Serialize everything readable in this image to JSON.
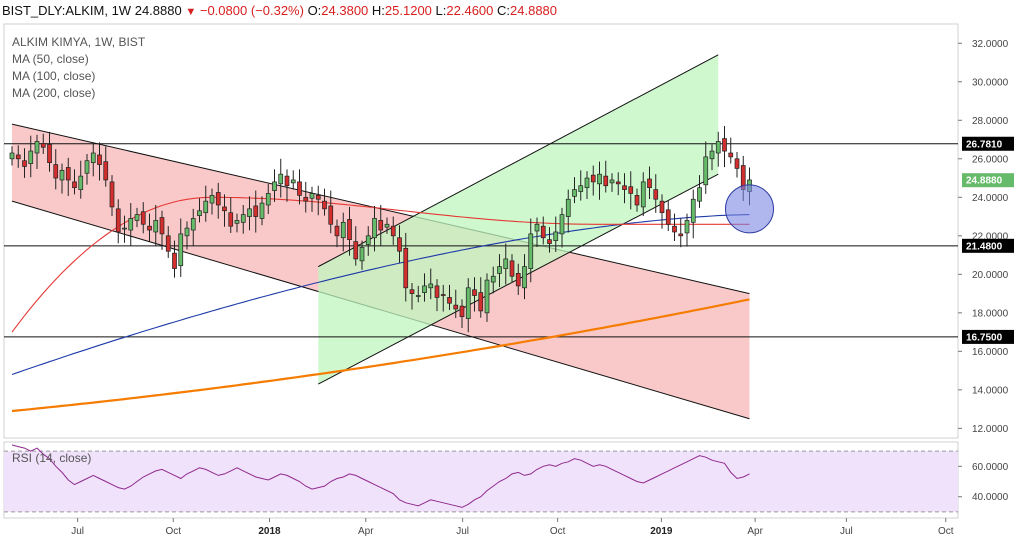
{
  "header": {
    "symbol": "BIST_DLY:ALKIM, 1W",
    "last": "24.8880",
    "change": "−0.0800 (−0.32%)",
    "o_label": "O:",
    "o": "24.3800",
    "h_label": "H:",
    "h": "25.1200",
    "l_label": "L:",
    "l": "22.4600",
    "c_label": "C:",
    "c": "24.8880"
  },
  "legend": {
    "title": "ALKIM KIMYA, 1W, BIST",
    "ma50": "MA (50, close)",
    "ma100": "MA (100, close)",
    "ma200": "MA (200, close)"
  },
  "rsi_label": "RSI (14, close)",
  "colors": {
    "up": "#26a69a",
    "down": "#ef5350",
    "candle_up_fill": "#66bb6a",
    "candle_down_fill": "#d32f2f",
    "ma50": "#e53935",
    "ma100": "#1e3aa8",
    "ma200": "#f57c00",
    "down_channel": "#f8bfbf",
    "up_channel": "#bff5bf",
    "rsi_bg": "#f1e2fb",
    "rsi_line": "#8e2a8e",
    "highlight_circle": "#7b86e3"
  },
  "chart_data": [
    {
      "type": "candlestick",
      "title": "ALKIM KIMYA, 1W, BIST",
      "interval": "1W",
      "x_tick_labels": [
        "Jul",
        "Oct",
        "2018",
        "Apr",
        "Jul",
        "Oct",
        "2019",
        "Apr",
        "Jul",
        "Oct"
      ],
      "y_tick_labels": [
        "12.0000",
        "14.0000",
        "16.0000",
        "18.0000",
        "20.0000",
        "22.0000",
        "24.0000",
        "26.0000",
        "28.0000",
        "30.0000",
        "32.0000"
      ],
      "ylim": [
        11.5,
        33.0
      ],
      "price_labels": [
        "26.7810",
        "24.8880",
        "21.4800",
        "16.7500"
      ],
      "horizontal_levels": [
        26.781,
        21.48,
        16.75
      ],
      "closes": [
        26.3,
        26.0,
        25.6,
        26.4,
        26.9,
        26.6,
        25.8,
        25.0,
        25.4,
        24.9,
        24.5,
        25.1,
        25.9,
        26.3,
        25.7,
        24.9,
        23.5,
        22.2,
        22.4,
        22.9,
        23.1,
        22.6,
        22.3,
        22.8,
        22.1,
        21.2,
        20.3,
        22.1,
        22.4,
        22.9,
        23.3,
        23.8,
        24.1,
        23.6,
        23.3,
        22.5,
        22.8,
        23.1,
        23.4,
        23.0,
        23.7,
        24.2,
        24.8,
        25.2,
        24.6,
        24.9,
        24.1,
        23.8,
        24.2,
        23.9,
        23.4,
        22.6,
        22.0,
        22.7,
        21.8,
        20.8,
        21.4,
        22.0,
        22.9,
        22.3,
        22.6,
        22.0,
        21.2,
        19.3,
        19.0,
        18.9,
        19.4,
        19.5,
        18.8,
        18.9,
        18.5,
        18.2,
        17.8,
        19.3,
        18.9,
        18.1,
        19.7,
        19.9,
        20.4,
        20.8,
        19.9,
        19.4,
        20.4,
        22.1,
        22.6,
        21.9,
        21.6,
        22.2,
        23.1,
        23.9,
        24.4,
        24.6,
        25.0,
        24.8,
        25.2,
        24.6,
        24.9,
        24.7,
        24.4,
        24.2,
        23.6,
        24.8,
        24.5,
        23.9,
        23.2,
        22.6,
        22.2,
        22.0,
        22.8,
        23.9,
        24.5,
        26.1,
        26.4,
        26.9,
        26.4,
        26.1,
        25.5,
        24.4,
        24.9
      ],
      "last_close": 24.888,
      "moving_averages": [
        {
          "name": "MA (50, close)",
          "start": 17.0,
          "peak": 24.0,
          "end": 22.6
        },
        {
          "name": "MA (100, close)",
          "start": 14.8,
          "end": 23.1
        },
        {
          "name": "MA (200, close)",
          "start": 12.9,
          "end": 18.7
        }
      ],
      "channels": [
        {
          "name": "down",
          "upper": [
            [
              0,
              27.8
            ],
            [
              118,
              19.0
            ]
          ],
          "lower": [
            [
              0,
              23.8
            ],
            [
              118,
              12.5
            ]
          ]
        },
        {
          "name": "up",
          "upper": [
            [
              49,
              20.4
            ],
            [
              113,
              31.4
            ]
          ],
          "lower": [
            [
              49,
              14.3
            ],
            [
              113,
              25.2
            ]
          ]
        }
      ]
    },
    {
      "type": "line",
      "title": "RSI (14, close)",
      "y_tick_labels": [
        "40.0000",
        "60.0000"
      ],
      "ylim": [
        26,
        76
      ],
      "values": [
        74,
        73,
        72,
        70,
        72,
        68,
        65,
        60,
        56,
        51,
        48,
        50,
        52,
        54,
        52,
        50,
        48,
        46,
        45,
        47,
        50,
        53,
        55,
        57,
        58,
        56,
        54,
        52,
        55,
        57,
        59,
        58,
        56,
        54,
        55,
        57,
        59,
        57,
        55,
        53,
        52,
        51,
        53,
        55,
        54,
        52,
        50,
        47,
        45,
        46,
        47,
        50,
        52,
        53,
        55,
        54,
        52,
        50,
        48,
        46,
        44,
        42,
        38,
        36,
        35,
        34,
        36,
        38,
        37,
        36,
        35,
        34,
        33,
        35,
        38,
        40,
        44,
        47,
        50,
        52,
        55,
        56,
        54,
        55,
        58,
        60,
        61,
        60,
        62,
        63,
        65,
        64,
        62,
        60,
        61,
        60,
        58,
        56,
        54,
        52,
        50,
        49,
        51,
        53,
        55,
        57,
        59,
        61,
        63,
        65,
        67,
        66,
        64,
        63,
        62,
        56,
        52,
        53,
        55
      ]
    }
  ]
}
